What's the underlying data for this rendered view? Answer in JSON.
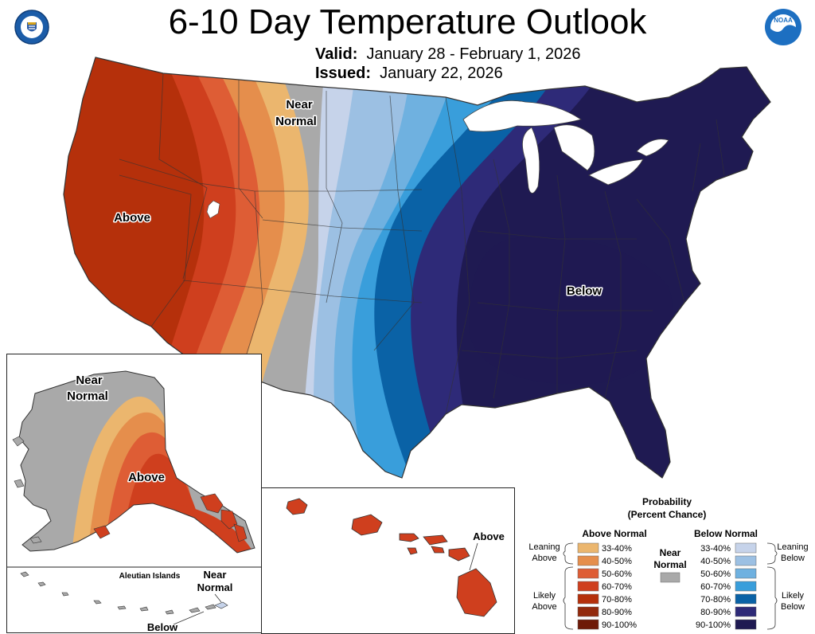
{
  "header": {
    "title": "6-10 Day Temperature Outlook",
    "valid_label": "Valid:",
    "valid_value": "January 28 - February 1, 2026",
    "issued_label": "Issued:",
    "issued_value": "January 22, 2026"
  },
  "logos": {
    "left": "commerce-seal-icon",
    "right": "noaa-logo-icon"
  },
  "conus": {
    "labels": {
      "near_normal_1": "Near",
      "near_normal_2": "Normal",
      "above": "Above",
      "below": "Below"
    }
  },
  "alaska": {
    "labels": {
      "near_normal_1": "Near",
      "near_normal_2": "Normal",
      "above": "Above"
    }
  },
  "aleutians": {
    "title": "Aleutian Islands",
    "near_normal_1": "Near",
    "near_normal_2": "Normal",
    "below": "Below"
  },
  "hawaii": {
    "above": "Above"
  },
  "legend": {
    "title1": "Probability",
    "title2": "(Percent Chance)",
    "above_header": "Above Normal",
    "below_header": "Below Normal",
    "near_normal_1": "Near",
    "near_normal_2": "Normal",
    "leaning_above_1": "Leaning",
    "leaning_above_2": "Above",
    "likely_above_1": "Likely",
    "likely_above_2": "Above",
    "leaning_below_1": "Leaning",
    "leaning_below_2": "Below",
    "likely_below_1": "Likely",
    "likely_below_2": "Below",
    "above_rows": [
      {
        "label": "33-40%",
        "color": "#EBB66E"
      },
      {
        "label": "40-50%",
        "color": "#E58E4C"
      },
      {
        "label": "50-60%",
        "color": "#DE5D35"
      },
      {
        "label": "60-70%",
        "color": "#CF3F1E"
      },
      {
        "label": "70-80%",
        "color": "#B5300B"
      },
      {
        "label": "80-90%",
        "color": "#92290C"
      },
      {
        "label": "90-100%",
        "color": "#6E1A08"
      }
    ],
    "below_rows": [
      {
        "label": "33-40%",
        "color": "#C6D3EA"
      },
      {
        "label": "40-50%",
        "color": "#9CC0E3"
      },
      {
        "label": "50-60%",
        "color": "#6FB1E0"
      },
      {
        "label": "60-70%",
        "color": "#399EDB"
      },
      {
        "label": "70-80%",
        "color": "#0A62A6"
      },
      {
        "label": "80-90%",
        "color": "#2E2A78"
      },
      {
        "label": "90-100%",
        "color": "#1F1A52"
      }
    ],
    "near_color": "#A9A9A9"
  }
}
